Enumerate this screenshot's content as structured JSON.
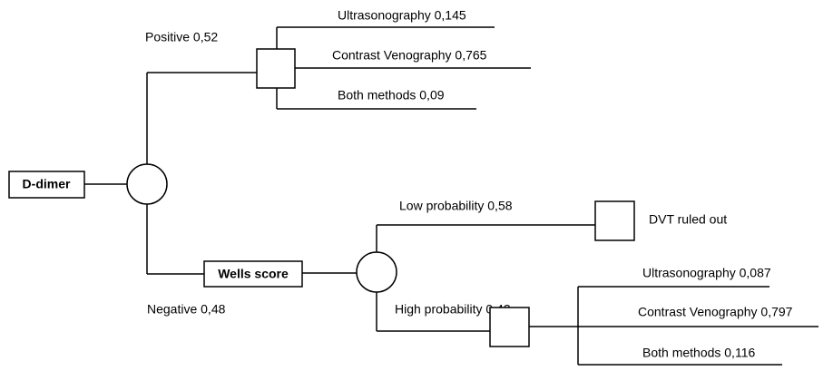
{
  "root": {
    "label": "D-dimer"
  },
  "positive": {
    "label": "Positive 0,52",
    "options": [
      "Ultrasonography 0,145",
      "Contrast Venography 0,765",
      "Both methods 0,09"
    ]
  },
  "negative": {
    "label": "Negative 0,48",
    "node": "Wells score",
    "low": {
      "label": "Low probability 0,58",
      "outcome": "DVT ruled out"
    },
    "high": {
      "label": "High probability 0,42",
      "options": [
        "Ultrasonography 0,087",
        "Contrast Venography 0,797",
        "Both methods 0,116"
      ]
    }
  }
}
